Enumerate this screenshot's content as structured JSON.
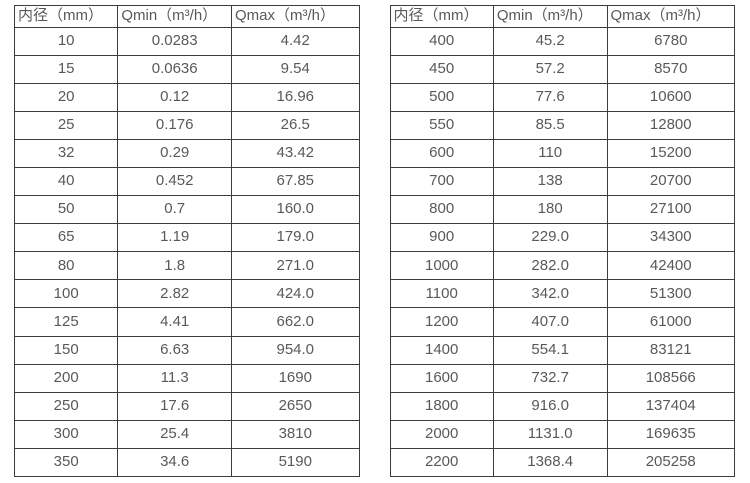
{
  "colors": {
    "background": "#ffffff",
    "border": "#3d3d3d",
    "text": "#595959"
  },
  "tables": [
    {
      "name": "flow-spec-table-small-diameters",
      "headers": [
        "内径（mm）",
        "Qmin（m³/h）",
        "Qmax（m³/h）"
      ],
      "rows": [
        [
          "10",
          "0.0283",
          "4.42"
        ],
        [
          "15",
          "0.0636",
          "9.54"
        ],
        [
          "20",
          "0.12",
          "16.96"
        ],
        [
          "25",
          "0.176",
          "26.5"
        ],
        [
          "32",
          "0.29",
          "43.42"
        ],
        [
          "40",
          "0.452",
          "67.85"
        ],
        [
          "50",
          "0.7",
          "160.0"
        ],
        [
          "65",
          "1.19",
          "179.0"
        ],
        [
          "80",
          "1.8",
          "271.0"
        ],
        [
          "100",
          "2.82",
          "424.0"
        ],
        [
          "125",
          "4.41",
          "662.0"
        ],
        [
          "150",
          "6.63",
          "954.0"
        ],
        [
          "200",
          "11.3",
          "1690"
        ],
        [
          "250",
          "17.6",
          "2650"
        ],
        [
          "300",
          "25.4",
          "3810"
        ],
        [
          "350",
          "34.6",
          "5190"
        ]
      ]
    },
    {
      "name": "flow-spec-table-large-diameters",
      "headers": [
        "内径（mm）",
        "Qmin（m³/h）",
        "Qmax（m³/h）"
      ],
      "rows": [
        [
          "400",
          "45.2",
          "6780"
        ],
        [
          "450",
          "57.2",
          "8570"
        ],
        [
          "500",
          "77.6",
          "10600"
        ],
        [
          "550",
          "85.5",
          "12800"
        ],
        [
          "600",
          "110",
          "15200"
        ],
        [
          "700",
          "138",
          "20700"
        ],
        [
          "800",
          "180",
          "27100"
        ],
        [
          "900",
          "229.0",
          "34300"
        ],
        [
          "1000",
          "282.0",
          "42400"
        ],
        [
          "1100",
          "342.0",
          "51300"
        ],
        [
          "1200",
          "407.0",
          "61000"
        ],
        [
          "1400",
          "554.1",
          "83121"
        ],
        [
          "1600",
          "732.7",
          "108566"
        ],
        [
          "1800",
          "916.0",
          "137404"
        ],
        [
          "2000",
          "1131.0",
          "169635"
        ],
        [
          "2200",
          "1368.4",
          "205258"
        ]
      ]
    }
  ]
}
